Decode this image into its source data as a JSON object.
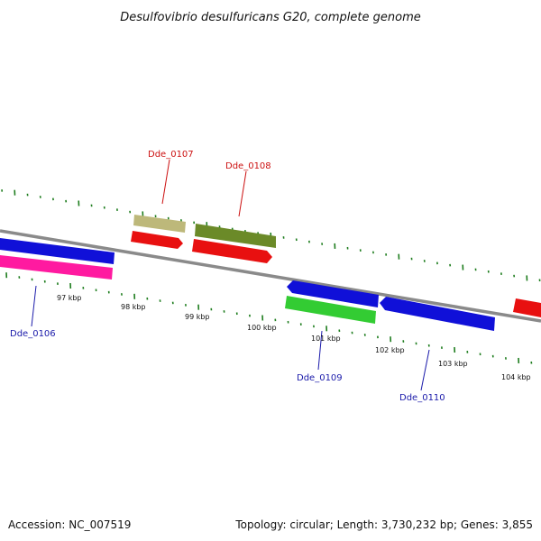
{
  "title": "Desulfovibrio desulfuricans G20, complete genome",
  "footer": {
    "accession": "Accession: NC_007519",
    "summary": "Topology: circular; Length: 3,730,232 bp; Genes: 3,855"
  },
  "kbp_ticks": [
    "97 kbp",
    "98 kbp",
    "99 kbp",
    "100 kbp",
    "101 kbp",
    "102 kbp",
    "103 kbp",
    "104 kbp"
  ],
  "gene_labels": [
    "Dde_0106",
    "Dde_0107",
    "Dde_0108",
    "Dde_0109",
    "Dde_0110"
  ],
  "colors": {
    "backbone": "#8a8a8a",
    "tick": "#1e7d1e",
    "red": "#e81010",
    "blue": "#1010d8",
    "pink": "#ff1aa0",
    "khaki": "#bdb87a",
    "olive": "#6b8a28",
    "green": "#33cc33",
    "label_red": "#cc1111",
    "label_blue": "#1a1aaa"
  }
}
